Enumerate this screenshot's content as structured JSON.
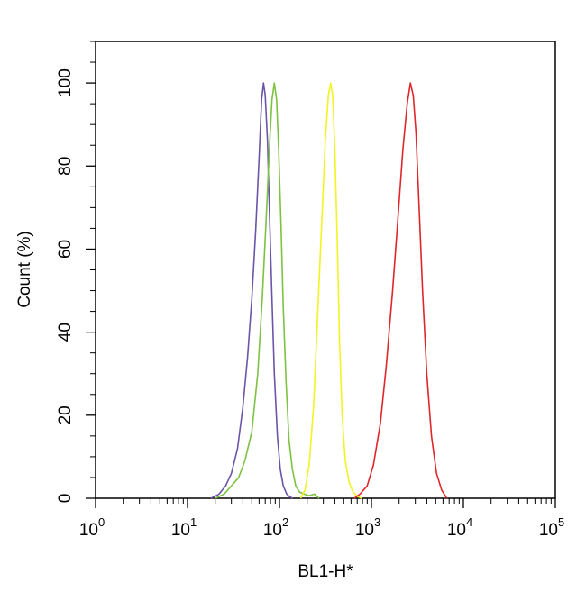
{
  "chart_data": {
    "type": "line",
    "title": "",
    "xlabel": "BL1-H*",
    "ylabel": "Count (%)",
    "x_scale": "log",
    "xlim": [
      1,
      100000
    ],
    "ylim": [
      0,
      110
    ],
    "x_ticks": [
      {
        "base": "10",
        "exp": "0",
        "value": 1
      },
      {
        "base": "10",
        "exp": "1",
        "value": 10
      },
      {
        "base": "10",
        "exp": "2",
        "value": 100
      },
      {
        "base": "10",
        "exp": "3",
        "value": 1000
      },
      {
        "base": "10",
        "exp": "4",
        "value": 10000
      },
      {
        "base": "10",
        "exp": "5",
        "value": 100000
      }
    ],
    "y_ticks": [
      "0",
      "20",
      "40",
      "60",
      "80",
      "100"
    ],
    "grid": false,
    "legend": "none",
    "series": [
      {
        "color": "#6a55a8",
        "x": [
          18,
          22,
          26,
          30,
          35,
          40,
          45,
          50,
          55,
          60,
          64,
          67,
          70,
          74,
          78,
          83,
          88,
          95,
          102,
          110,
          120,
          130,
          140
        ],
        "y": [
          0,
          1,
          3,
          6,
          12,
          22,
          34,
          48,
          64,
          82,
          96,
          100,
          97,
          86,
          68,
          48,
          30,
          15,
          7,
          3,
          1,
          0.3,
          0
        ]
      },
      {
        "color": "#7dc241",
        "x": [
          20,
          25,
          30,
          36,
          42,
          50,
          58,
          65,
          72,
          78,
          83,
          88,
          93,
          98,
          104,
          110,
          118,
          127,
          138,
          150,
          165,
          185,
          210,
          240,
          270
        ],
        "y": [
          0,
          1,
          3,
          5,
          9,
          16,
          30,
          48,
          68,
          85,
          96,
          100,
          96,
          84,
          66,
          46,
          28,
          14,
          7,
          3,
          1.5,
          1,
          0.6,
          1,
          0
        ]
      },
      {
        "color": "#f3f321",
        "x": [
          170,
          190,
          210,
          235,
          260,
          290,
          315,
          340,
          360,
          380,
          400,
          425,
          450,
          480,
          520,
          570,
          630,
          700,
          780
        ],
        "y": [
          0,
          2,
          8,
          22,
          44,
          68,
          86,
          97,
          100,
          97,
          84,
          62,
          38,
          20,
          9,
          4,
          1.5,
          0.5,
          0
        ]
      },
      {
        "color": "#e0262b",
        "x": [
          650,
          750,
          900,
          1050,
          1250,
          1450,
          1700,
          1950,
          2200,
          2450,
          2650,
          2850,
          3050,
          3300,
          3600,
          4000,
          4500,
          5100,
          5800,
          6600
        ],
        "y": [
          0,
          1,
          3,
          8,
          18,
          32,
          50,
          68,
          84,
          95,
          100,
          97,
          88,
          70,
          50,
          30,
          15,
          6,
          2,
          0
        ]
      }
    ]
  }
}
